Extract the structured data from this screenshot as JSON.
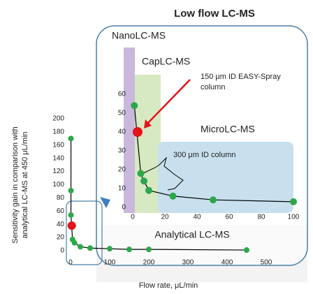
{
  "title": "Low flow LC-MS",
  "annotations": {
    "nano": "NanoLC-MS",
    "cap": "CapLC-MS",
    "column150": [
      "150 μm ID EASY-Spray",
      "column"
    ],
    "micro": "MicroLC-MS",
    "column300": "300 μm ID column",
    "analytical": "Analytical LC-MS"
  },
  "chart_data": [
    {
      "type": "scatter",
      "xlabel": "Flow rate, μL/min",
      "ylabel": [
        "Sensitivity gain in comparison with",
        "analytical LC-MS at 450 μL/min"
      ],
      "xlim": [
        0,
        500
      ],
      "ylim": [
        0,
        200
      ],
      "xticks": [
        0,
        100,
        200,
        300,
        400,
        500
      ],
      "yticks": [
        0,
        20,
        40,
        60,
        80,
        100,
        120,
        140,
        160,
        180,
        200
      ],
      "line_color": "#000000",
      "series": [
        {
          "color": "#2ca84a",
          "x": [
            1,
            1,
            1,
            5,
            10,
            25,
            50,
            100,
            150,
            200,
            450
          ],
          "y": [
            170,
            91,
            54,
            17,
            12,
            6,
            4,
            3,
            2,
            2,
            1
          ]
        },
        {
          "color": "#e3141b",
          "x": [
            3
          ],
          "y": [
            38
          ]
        }
      ]
    },
    {
      "type": "scatter",
      "xlim": [
        0,
        100
      ],
      "ylim": [
        0,
        60
      ],
      "xticks": [
        0,
        20,
        40,
        60,
        80,
        100
      ],
      "yticks": [
        0,
        10,
        20,
        30,
        40,
        50,
        60
      ],
      "line_color": "#000000",
      "series": [
        {
          "color": "#2ca84a",
          "x": [
            1,
            5,
            7,
            10,
            25,
            50,
            100
          ],
          "y": [
            54,
            18,
            14,
            9,
            6,
            4,
            3
          ]
        },
        {
          "color": "#e3141b",
          "x": [
            3
          ],
          "y": [
            40
          ]
        }
      ]
    }
  ]
}
